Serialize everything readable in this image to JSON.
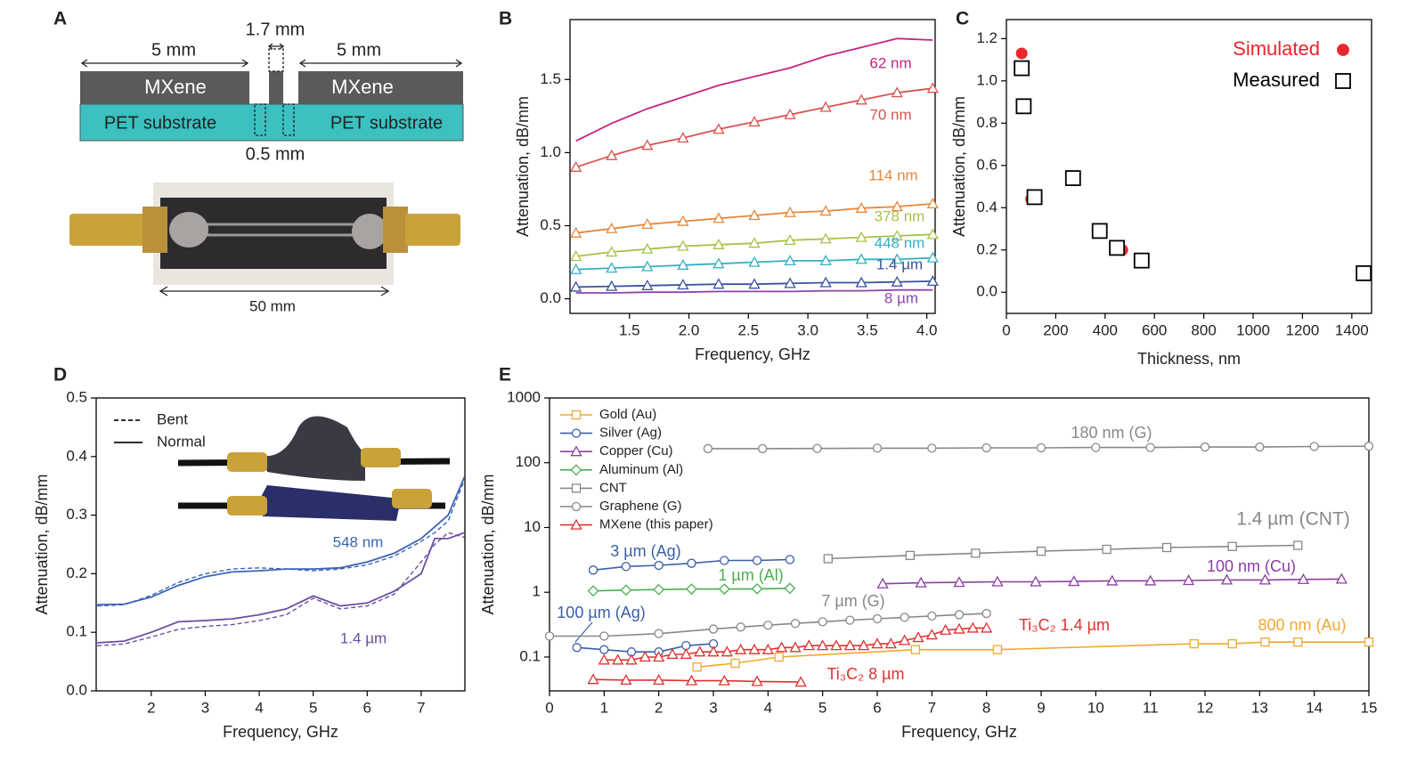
{
  "diagram": {
    "panel_label": "A",
    "gap_label": "1.7 mm",
    "left_label": "5 mm",
    "right_label": "5 mm",
    "top_layer": [
      "MXene",
      "MXene"
    ],
    "bottom_layer": [
      "PET substrate",
      "PET substrate"
    ],
    "slot_label": "0.5 mm",
    "length_label": "50 mm"
  },
  "chart_data": [
    {
      "type": "line",
      "panel_label": "B",
      "x_label": "Frequency, GHz",
      "y_label": "Attenuation, dB/mm",
      "xlim": [
        1.0,
        4.07
      ],
      "ylim": [
        -0.1,
        1.91
      ],
      "xticks": [
        1.5,
        {
          "value": 2,
          "label": "2.0"
        },
        2.5,
        {
          "value": 3,
          "label": "3.0"
        },
        3.5,
        {
          "value": 4,
          "label": "4.0"
        }
      ],
      "yticks": [
        {
          "value": 0,
          "label": "0.0"
        },
        0.5,
        {
          "value": 1,
          "label": "1.0"
        },
        1.5
      ],
      "x": [
        1.05,
        1.35,
        1.65,
        1.95,
        2.25,
        2.55,
        2.85,
        3.15,
        3.45,
        3.75,
        4.05
      ],
      "series": [
        {
          "name": "62 nm",
          "color": "#c8247f",
          "values": [
            1.08,
            1.2,
            1.3,
            1.38,
            1.46,
            1.52,
            1.58,
            1.66,
            1.72,
            1.78,
            1.77
          ]
        },
        {
          "name": "70 nm",
          "color": "#d9534f",
          "marker": "triangle",
          "values": [
            0.9,
            0.98,
            1.05,
            1.1,
            1.16,
            1.21,
            1.26,
            1.31,
            1.36,
            1.41,
            1.44
          ]
        },
        {
          "name": "114 nm",
          "color": "#e8873a",
          "marker": "triangle",
          "values": [
            0.45,
            0.48,
            0.51,
            0.53,
            0.55,
            0.57,
            0.59,
            0.6,
            0.62,
            0.63,
            0.65
          ]
        },
        {
          "name": "378 nm",
          "color": "#a6c24a",
          "marker": "triangle",
          "values": [
            0.29,
            0.32,
            0.34,
            0.36,
            0.37,
            0.38,
            0.4,
            0.41,
            0.42,
            0.43,
            0.44
          ]
        },
        {
          "name": "448 nm",
          "color": "#35b1c1",
          "marker": "triangle",
          "values": [
            0.2,
            0.21,
            0.22,
            0.23,
            0.24,
            0.25,
            0.26,
            0.26,
            0.27,
            0.27,
            0.28
          ]
        },
        {
          "name": "1.4 µm",
          "color": "#3b52a0",
          "marker": "triangle",
          "values": [
            0.08,
            0.085,
            0.09,
            0.095,
            0.1,
            0.1,
            0.105,
            0.11,
            0.11,
            0.115,
            0.12
          ]
        },
        {
          "name": "8 µm",
          "color": "#8e44ad",
          "values": [
            0.04,
            0.04,
            0.045,
            0.045,
            0.05,
            0.05,
            0.05,
            0.055,
            0.055,
            0.06,
            0.06
          ]
        }
      ]
    },
    {
      "type": "scatter",
      "panel_label": "C",
      "x_label": "Thickness, nm",
      "y_label": "Attenuation, dB/mm",
      "xlim": [
        0,
        1480
      ],
      "ylim": [
        -0.1,
        1.29
      ],
      "xticks": [
        0,
        200,
        400,
        600,
        800,
        1000,
        1200,
        1400
      ],
      "yticks": [
        {
          "value": 0,
          "label": "0.0"
        },
        0.2,
        0.4,
        0.6,
        0.8,
        {
          "value": 1,
          "label": "1.0"
        },
        1.2
      ],
      "legend": "upper right",
      "series": [
        {
          "name": "Simulated",
          "color": "#e8262b",
          "marker": "circle",
          "x": [
            62,
            100,
            378,
            448,
            470,
            548,
            1448
          ],
          "values": [
            1.13,
            0.44,
            0.29,
            0.22,
            0.2,
            0.145,
            0.09
          ]
        },
        {
          "name": "Measured",
          "color": "#000000",
          "marker": "square",
          "x": [
            62,
            70,
            114,
            270,
            378,
            448,
            548,
            1448
          ],
          "values": [
            1.06,
            0.88,
            0.45,
            0.54,
            0.29,
            0.21,
            0.15,
            0.09
          ]
        }
      ]
    },
    {
      "type": "line",
      "panel_label": "D",
      "x_label": "Frequency, GHz",
      "y_label": "Attenuation, dB/mm",
      "xlim": [
        0.98,
        7.81
      ],
      "ylim": [
        0,
        0.5
      ],
      "xticks": [
        2,
        3,
        4,
        5,
        6,
        7
      ],
      "yticks": [
        {
          "value": 0,
          "label": "0.0"
        },
        0.1,
        0.2,
        0.3,
        0.4,
        0.5
      ],
      "legend_labels": {
        "bent": "Bent",
        "normal": "Normal"
      },
      "x": [
        1.0,
        1.5,
        2.0,
        2.5,
        3.0,
        3.5,
        4.0,
        4.5,
        5.0,
        5.5,
        6.0,
        6.5,
        7.0,
        7.25,
        7.5,
        7.8
      ],
      "series": [
        {
          "name": "548 nm",
          "color": "#3c64b4",
          "normal": [
            0.147,
            0.148,
            0.16,
            0.18,
            0.195,
            0.203,
            0.205,
            0.208,
            0.208,
            0.21,
            0.22,
            0.235,
            0.26,
            0.28,
            0.3,
            0.365
          ],
          "bent": [
            0.145,
            0.147,
            0.163,
            0.185,
            0.2,
            0.208,
            0.21,
            0.208,
            0.205,
            0.208,
            0.215,
            0.23,
            0.255,
            0.27,
            0.29,
            0.36
          ]
        },
        {
          "name": "1.4 µm",
          "color": "#6a4fa3",
          "normal": [
            0.082,
            0.085,
            0.1,
            0.118,
            0.12,
            0.123,
            0.13,
            0.14,
            0.162,
            0.145,
            0.15,
            0.17,
            0.2,
            0.26,
            0.26,
            0.27
          ],
          "bent": [
            0.077,
            0.08,
            0.092,
            0.105,
            0.11,
            0.113,
            0.12,
            0.13,
            0.158,
            0.14,
            0.145,
            0.165,
            0.22,
            0.25,
            0.27,
            0.262
          ]
        }
      ]
    },
    {
      "type": "line",
      "panel_label": "E",
      "x_label": "Frequency, GHz",
      "y_label": "Attenuation, dB/mm",
      "y_scale": "log",
      "xlim": [
        0,
        15
      ],
      "ylim": [
        0.03,
        1000
      ],
      "xticks": [
        0,
        1,
        2,
        3,
        4,
        5,
        6,
        7,
        8,
        9,
        10,
        11,
        12,
        13,
        14,
        15
      ],
      "yticks": [
        0.1,
        1,
        10,
        100,
        1000
      ],
      "legend": "upper left",
      "series": [
        {
          "name": "Gold (Au)",
          "color": "#f0a830",
          "marker": "square",
          "segments": [
            {
              "label": "800 nm (Au)",
              "x": [
                2.7,
                3.4,
                4.2,
                6.7,
                8.2,
                11.8,
                12.5,
                13.1,
                13.7,
                15
              ],
              "values": [
                0.07,
                0.08,
                0.1,
                0.13,
                0.13,
                0.16,
                0.16,
                0.17,
                0.17,
                0.17
              ]
            }
          ]
        },
        {
          "name": "Silver (Ag)",
          "color": "#3a5fa8",
          "marker": "circle",
          "segments": [
            {
              "label": "3 µm (Ag)",
              "x": [
                0.8,
                1.4,
                2.0,
                2.6,
                3.2,
                3.8,
                4.4
              ],
              "values": [
                2.2,
                2.5,
                2.6,
                2.8,
                3.1,
                3.1,
                3.2
              ]
            },
            {
              "label": "100 µm (Ag)",
              "x": [
                0.5,
                1.0,
                1.5,
                2.0,
                2.5,
                3.0
              ],
              "values": [
                0.14,
                0.13,
                0.12,
                0.12,
                0.15,
                0.16
              ]
            }
          ]
        },
        {
          "name": "Copper (Cu)",
          "color": "#8b3fa0",
          "marker": "triangle",
          "segments": [
            {
              "label": "100 nm (Cu)",
              "x": [
                6.1,
                6.8,
                7.5,
                8.2,
                8.9,
                9.6,
                10.3,
                11.0,
                11.7,
                12.4,
                13.1,
                13.8,
                14.5
              ],
              "values": [
                1.35,
                1.4,
                1.42,
                1.45,
                1.45,
                1.47,
                1.5,
                1.5,
                1.52,
                1.55,
                1.55,
                1.58,
                1.6
              ]
            }
          ]
        },
        {
          "name": "Aluminum (Al)",
          "color": "#4caf50",
          "marker": "diamond",
          "segments": [
            {
              "label": "1 µm (Al)",
              "x": [
                0.8,
                1.4,
                2.0,
                2.6,
                3.2,
                3.8,
                4.4
              ],
              "values": [
                1.05,
                1.08,
                1.1,
                1.12,
                1.12,
                1.13,
                1.15
              ]
            }
          ]
        },
        {
          "name": "CNT",
          "color": "#888888",
          "marker": "square",
          "segments": [
            {
              "label": "1.4 µm (CNT)",
              "x": [
                5.1,
                6.6,
                7.8,
                9.0,
                10.2,
                11.3,
                12.5,
                13.7
              ],
              "values": [
                3.3,
                3.7,
                4.0,
                4.3,
                4.6,
                4.9,
                5.1,
                5.3
              ]
            }
          ]
        },
        {
          "name": "Graphene (G)",
          "color": "#888888",
          "marker": "circle",
          "segments": [
            {
              "label": "180 nm (G)",
              "x": [
                2.9,
                3.9,
                4.9,
                6.0,
                7.0,
                8.0,
                9.0,
                10.0,
                11.0,
                12.0,
                13.0,
                14.0,
                15.0
              ],
              "values": [
                165,
                165,
                166,
                168,
                168,
                170,
                170,
                172,
                172,
                175,
                175,
                178,
                180
              ]
            },
            {
              "label": "7 µm (G)",
              "x": [
                0,
                1.0,
                2.0,
                3.0,
                3.5,
                4.0,
                4.5,
                5.0,
                5.5,
                6.0,
                6.5,
                7.0,
                7.5,
                8.0
              ],
              "values": [
                0.21,
                0.21,
                0.23,
                0.27,
                0.29,
                0.31,
                0.33,
                0.35,
                0.37,
                0.39,
                0.41,
                0.43,
                0.45,
                0.47
              ]
            }
          ]
        },
        {
          "name": "MXene (this paper)",
          "color": "#e03030",
          "marker": "triangle",
          "segments": [
            {
              "label": "Ti₃C₂ 1.4 µm",
              "x": [
                1.0,
                1.25,
                1.5,
                1.75,
                2.0,
                2.25,
                2.5,
                2.75,
                3.0,
                3.25,
                3.5,
                3.75,
                4.0,
                4.25,
                4.5,
                4.75,
                5.0,
                5.25,
                5.5,
                5.75,
                6.0,
                6.25,
                6.5,
                6.75,
                7.0,
                7.25,
                7.5,
                7.75,
                8.0
              ],
              "values": [
                0.09,
                0.09,
                0.09,
                0.1,
                0.1,
                0.11,
                0.11,
                0.12,
                0.12,
                0.12,
                0.13,
                0.13,
                0.13,
                0.14,
                0.14,
                0.15,
                0.15,
                0.15,
                0.15,
                0.15,
                0.16,
                0.16,
                0.18,
                0.2,
                0.22,
                0.26,
                0.27,
                0.28,
                0.28
              ]
            },
            {
              "label": "Ti₃C₂ 8 µm",
              "x": [
                0.8,
                1.4,
                2.0,
                2.6,
                3.2,
                3.8,
                4.6
              ],
              "values": [
                0.045,
                0.044,
                0.044,
                0.043,
                0.043,
                0.042,
                0.041
              ]
            }
          ]
        }
      ]
    }
  ]
}
